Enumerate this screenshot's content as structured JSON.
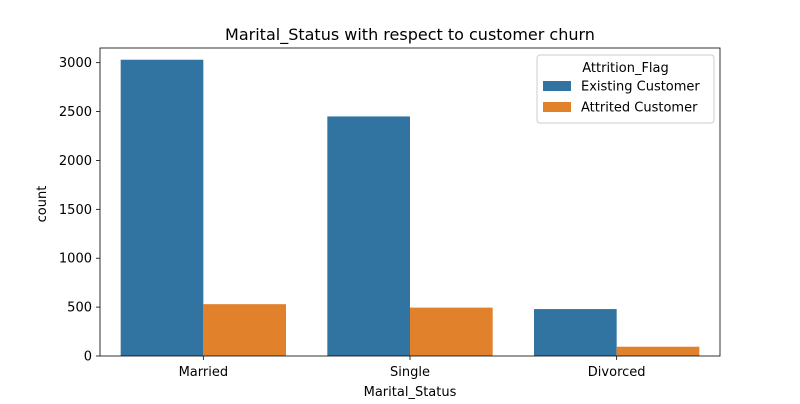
{
  "chart_data": {
    "type": "bar",
    "title": "Marital_Status with respect to customer churn",
    "xlabel": "Marital_Status",
    "ylabel": "count",
    "categories": [
      "Married",
      "Single",
      "Divorced"
    ],
    "series": [
      {
        "name": "Existing Customer",
        "values": [
          3030,
          2450,
          480
        ],
        "color": "#3274a1"
      },
      {
        "name": "Attrited Customer",
        "values": [
          530,
          495,
          95
        ],
        "color": "#e1812c"
      }
    ],
    "ylim": [
      0,
      3150
    ],
    "yticks": [
      0,
      500,
      1000,
      1500,
      2000,
      2500,
      3000
    ],
    "grid": false,
    "legend": {
      "title": "Attrition_Flag",
      "placement": "top-right"
    }
  }
}
